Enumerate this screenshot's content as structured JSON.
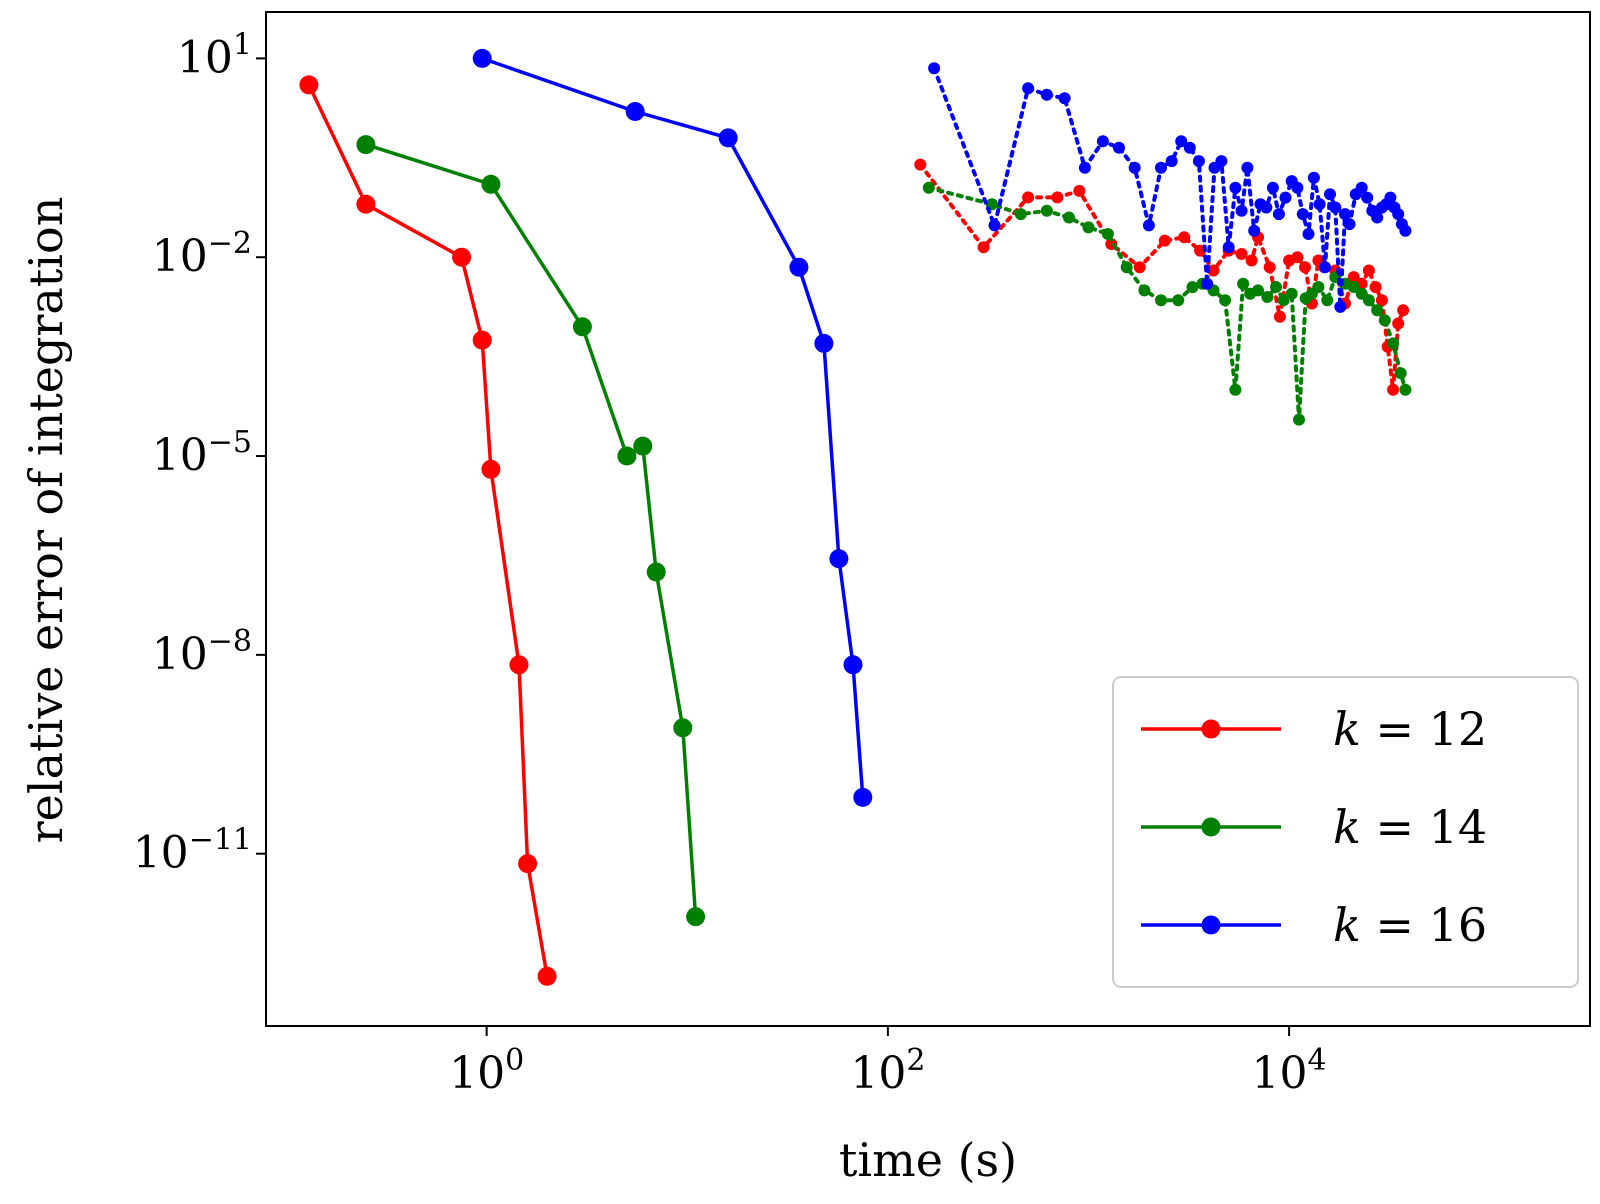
{
  "chart_data": {
    "type": "line",
    "title": "",
    "xlabel": "time (s)",
    "ylabel": "relative error of integration",
    "x_scale": "log",
    "y_scale": "log",
    "xlim_exp": [
      -1.1,
      5.5
    ],
    "ylim_exp": [
      -13.6,
      1.7
    ],
    "x_ticks": [
      {
        "base": "10",
        "exp": "0",
        "value": 1
      },
      {
        "base": "10",
        "exp": "2",
        "value": 100
      },
      {
        "base": "10",
        "exp": "4",
        "value": 10000
      }
    ],
    "y_ticks": [
      {
        "base": "10",
        "exp": "1",
        "value": 10
      },
      {
        "base": "10",
        "exp": "−2",
        "value": 0.01
      },
      {
        "base": "10",
        "exp": "−5",
        "value": 1e-05
      },
      {
        "base": "10",
        "exp": "−8",
        "value": 1e-08
      },
      {
        "base": "10",
        "exp": "−11",
        "value": 1e-11
      }
    ],
    "grid": false,
    "legend_position": "bottom-right",
    "series": [
      {
        "name": "k = 12",
        "legend_var": "k",
        "legend_value": "12",
        "color": "#ff0000",
        "style": "solid",
        "x": [
          0.13,
          0.25,
          0.75,
          0.95,
          1.05,
          1.45,
          1.6,
          2.0
        ],
        "y": [
          3.98,
          0.0631,
          0.01,
          0.000562,
          6.31e-06,
          7.08e-09,
          7.08e-12,
          1.41e-13
        ]
      },
      {
        "name": "k = 14",
        "legend_var": "k",
        "legend_value": "14",
        "color": "#008000",
        "style": "solid",
        "x": [
          0.25,
          1.05,
          3.0,
          5.0,
          6.0,
          7.0,
          9.5,
          11.0
        ],
        "y": [
          0.501,
          0.126,
          0.000891,
          1e-05,
          1.41e-05,
          1.78e-07,
          7.94e-10,
          1.12e-12
        ]
      },
      {
        "name": "k = 16",
        "legend_var": "k",
        "legend_value": "16",
        "color": "#0000ff",
        "style": "solid",
        "x": [
          0.95,
          5.5,
          16.0,
          36.0,
          48.0,
          57.0,
          67.0,
          75.0
        ],
        "y": [
          10.0,
          1.58,
          0.631,
          0.00708,
          0.000501,
          2.82e-07,
          7.08e-09,
          7.08e-11
        ]
      },
      {
        "name": "",
        "color": "#ff0000",
        "style": "dotted",
        "x": [
          145,
          300,
          500,
          700,
          900,
          1300,
          1800,
          2400,
          3000,
          3600,
          4200,
          5000,
          5800,
          6500,
          7000,
          8000,
          9000,
          10000,
          11000,
          12000,
          13000,
          14000,
          15000,
          17000,
          19000,
          21000,
          23000,
          25000,
          27000,
          29000,
          31000,
          33000,
          35000,
          37000
        ],
        "y": [
          0.25,
          0.0141,
          0.08,
          0.08,
          0.1,
          0.0158,
          0.00708,
          0.0178,
          0.02,
          0.0126,
          0.00631,
          0.0126,
          0.0112,
          0.00891,
          0.02,
          0.00708,
          0.00126,
          0.00891,
          0.01,
          0.00708,
          0.002,
          0.00891,
          0.00708,
          0.00631,
          0.002,
          0.00501,
          0.00398,
          0.00631,
          0.00354,
          0.00224,
          0.000447,
          0.0001,
          0.001,
          0.00158
        ]
      },
      {
        "name": "",
        "color": "#008000",
        "style": "dotted",
        "x": [
          160,
          330,
          460,
          620,
          800,
          1000,
          1250,
          1550,
          1900,
          2300,
          2800,
          3300,
          3700,
          4200,
          4800,
          5400,
          5900,
          6400,
          7000,
          7800,
          8600,
          9400,
          10300,
          11200,
          12100,
          13000,
          14000,
          15500,
          17000,
          19000,
          21000,
          23000,
          25000,
          27500,
          30000,
          33000,
          36000,
          38000
        ],
        "y": [
          0.112,
          0.063,
          0.0447,
          0.0501,
          0.0398,
          0.0282,
          0.0224,
          0.00708,
          0.00316,
          0.00224,
          0.00224,
          0.00354,
          0.00398,
          0.00316,
          0.00224,
          0.0001,
          0.00398,
          0.00282,
          0.00316,
          0.00251,
          0.00355,
          0.00224,
          0.00282,
          3.55e-05,
          0.0024,
          0.00282,
          0.00355,
          0.00224,
          0.00501,
          0.00398,
          0.00355,
          0.00282,
          0.00224,
          0.00158,
          0.00112,
          0.000501,
          0.000178,
          0.0001
        ]
      },
      {
        "name": "",
        "color": "#0000ff",
        "style": "dotted",
        "x": [
          170,
          340,
          500,
          620,
          760,
          960,
          1180,
          1420,
          1700,
          2000,
          2300,
          2600,
          2900,
          3200,
          3550,
          3900,
          4250,
          4600,
          5000,
          5400,
          5800,
          6200,
          6700,
          7200,
          7700,
          8300,
          8900,
          9600,
          10300,
          11000,
          11700,
          12500,
          13300,
          14200,
          15100,
          16000,
          17000,
          18000,
          19000,
          20000,
          21500,
          23000,
          24500,
          26000,
          27500,
          29000,
          30500,
          32000,
          33500,
          35000,
          36500,
          38000
        ],
        "y": [
          7.08,
          0.0302,
          3.55,
          2.82,
          2.51,
          0.224,
          0.562,
          0.447,
          0.224,
          0.0302,
          0.224,
          0.282,
          0.562,
          0.447,
          0.282,
          0.00398,
          0.224,
          0.282,
          0.0141,
          0.112,
          0.0501,
          0.224,
          0.0251,
          0.0631,
          0.0562,
          0.112,
          0.0447,
          0.0794,
          0.141,
          0.112,
          0.0447,
          0.0224,
          0.158,
          0.0631,
          0.00708,
          0.0891,
          0.0562,
          0.00178,
          0.0447,
          0.0316,
          0.0891,
          0.112,
          0.0794,
          0.0501,
          0.0398,
          0.0562,
          0.0631,
          0.0794,
          0.0562,
          0.0447,
          0.0316,
          0.0251
        ]
      }
    ]
  }
}
